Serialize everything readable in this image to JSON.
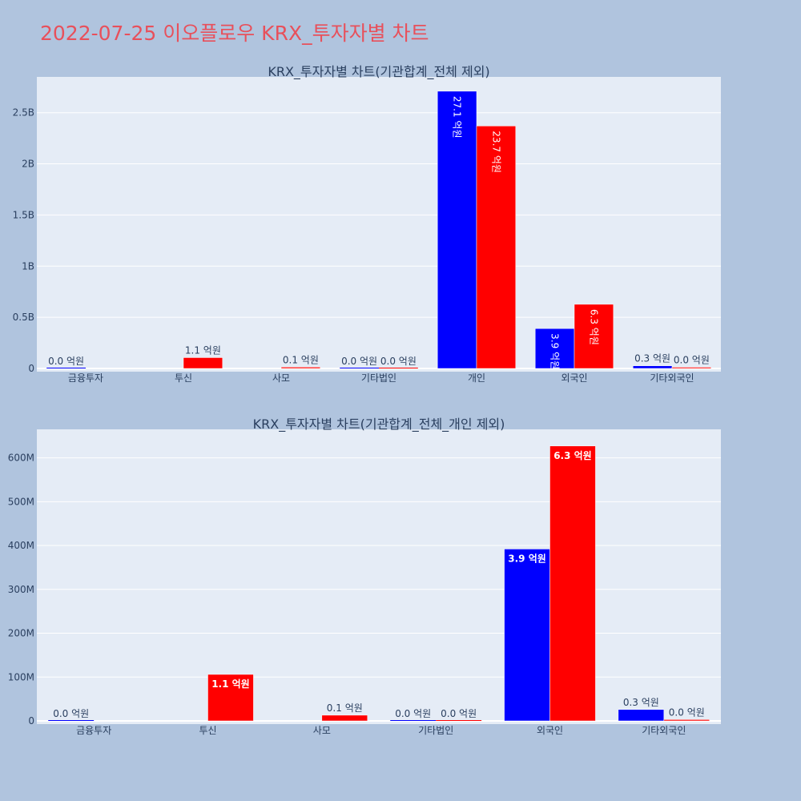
{
  "page": {
    "title": "2022-07-25 이오플로우 KRX_투자자별 차트"
  },
  "colors": {
    "buy": "#0000ff",
    "sell": "#ff0000",
    "plot_bg": "#e5ecf6",
    "page_bg": "#b0c4de",
    "title": "#e8505b"
  },
  "chart_data": [
    {
      "type": "bar",
      "title": "KRX_투자자별 차트(기관합계_전체 제외)",
      "categories": [
        "금융투자",
        "투신",
        "사모",
        "기타법인",
        "개인",
        "외국인",
        "기타외국인"
      ],
      "series": [
        {
          "color": "#0000ff",
          "values": [
            0,
            0,
            0,
            0,
            2710000000,
            390000000,
            26000000
          ],
          "labels": [
            "0.0 억원",
            "",
            "",
            "0.0 억원",
            "27.1 억원",
            "3.9 억원",
            "0.3 억원"
          ]
        },
        {
          "color": "#ff0000",
          "values": [
            0,
            106000000,
            13000000,
            0,
            2370000000,
            627000000,
            3000000
          ],
          "labels": [
            "",
            "1.1 억원",
            "0.1 억원",
            "0.0 억원",
            "23.7 억원",
            "6.3 억원",
            "0.0 억원"
          ]
        }
      ],
      "yticks": [
        0,
        500000000,
        1000000000,
        1500000000,
        2000000000,
        2500000000
      ],
      "ytick_labels": [
        "0",
        "0.5B",
        "1B",
        "1.5B",
        "2B",
        "2.5B"
      ],
      "ylim": [
        0,
        2850000000
      ],
      "grid": true
    },
    {
      "type": "bar",
      "title": "KRX_투자자별 차트(기관합계_전체_개인 제외)",
      "categories": [
        "금융투자",
        "투신",
        "사모",
        "기타법인",
        "외국인",
        "기타외국인"
      ],
      "series": [
        {
          "color": "#0000ff",
          "values": [
            0,
            0,
            0,
            0,
            392000000,
            26000000
          ],
          "labels": [
            "0.0 억원",
            "",
            "",
            "0.0 억원",
            "3.9 억원",
            "0.3 억원"
          ]
        },
        {
          "color": "#ff0000",
          "values": [
            0,
            106000000,
            13000000,
            0,
            627000000,
            3000000
          ],
          "labels": [
            "",
            "1.1 억원",
            "0.1 억원",
            "0.0 억원",
            "6.3 억원",
            "0.0 억원"
          ]
        }
      ],
      "yticks": [
        0,
        100000000,
        200000000,
        300000000,
        400000000,
        500000000,
        600000000
      ],
      "ytick_labels": [
        "0",
        "100M",
        "200M",
        "300M",
        "400M",
        "500M",
        "600M"
      ],
      "ylim": [
        0,
        665000000
      ],
      "grid": true
    }
  ]
}
